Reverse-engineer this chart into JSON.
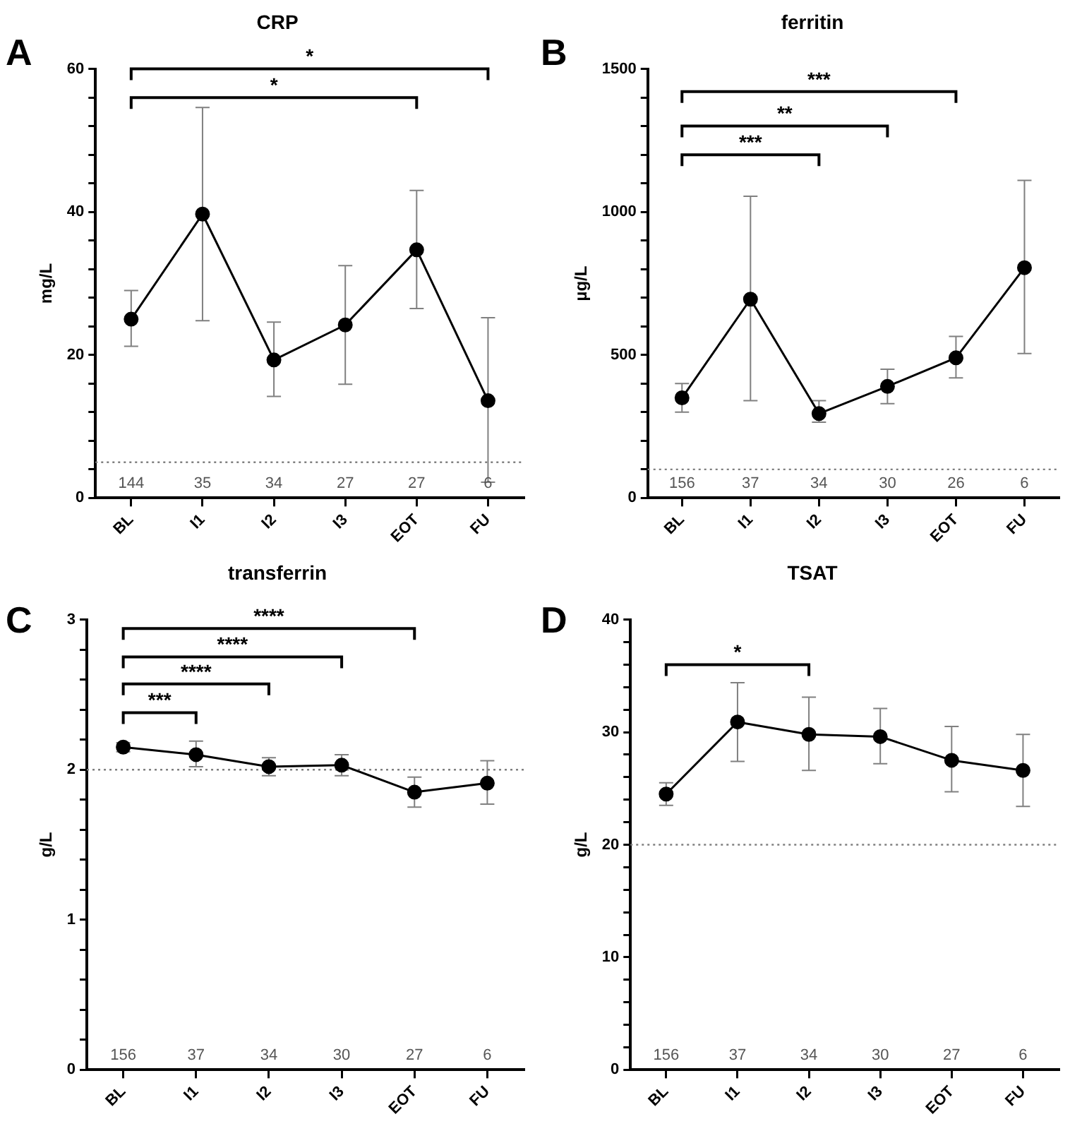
{
  "chart_data": [
    {
      "type": "line",
      "title": "CRP",
      "ylabel": "mg/L",
      "categories": [
        "BL",
        "I1",
        "I2",
        "I3",
        "EOT",
        "FU"
      ],
      "marker": "circle",
      "grid": false,
      "legend": false,
      "series": [
        {
          "color": "#000000",
          "values": [
            25,
            39.7,
            19.3,
            24.2,
            34.7,
            13.6
          ],
          "errors": [
            [
              21.2,
              29
            ],
            [
              24.8,
              54.6
            ],
            [
              14.2,
              24.6
            ],
            [
              15.9,
              32.5
            ],
            [
              26.5,
              43
            ],
            [
              2.2,
              25.2
            ]
          ]
        }
      ],
      "ylim": [
        0,
        60
      ],
      "yticks": [
        0,
        {
          "value": 4,
          "label": null
        },
        {
          "value": 8,
          "label": null
        },
        {
          "value": 12,
          "label": null
        },
        {
          "value": 16,
          "label": null
        },
        20,
        {
          "value": 24,
          "label": null
        },
        {
          "value": 28,
          "label": null
        },
        {
          "value": 32,
          "label": null
        },
        {
          "value": 36,
          "label": null
        },
        40,
        {
          "value": 44,
          "label": null
        },
        {
          "value": 48,
          "label": null
        },
        {
          "value": 52,
          "label": null
        },
        {
          "value": 56,
          "label": null
        },
        60
      ],
      "ref_lines": [
        {
          "axis": "y",
          "value": 5,
          "color": "#7f7f7f",
          "line_style": "dotted"
        }
      ],
      "annotations": [
        "A",
        "*",
        "*",
        "144",
        "35",
        "34",
        "27",
        "27",
        "6"
      ]
    },
    {
      "type": "line",
      "title": "ferritin",
      "ylabel": "µg/L",
      "categories": [
        "BL",
        "I1",
        "I2",
        "I3",
        "EOT",
        "FU"
      ],
      "marker": "circle",
      "grid": false,
      "legend": false,
      "series": [
        {
          "color": "#000000",
          "values": [
            350,
            695,
            295,
            390,
            490,
            805
          ],
          "errors": [
            [
              300,
              400
            ],
            [
              340,
              1055
            ],
            [
              265,
              340
            ],
            [
              330,
              450
            ],
            [
              420,
              565
            ],
            [
              505,
              1110
            ]
          ]
        }
      ],
      "ylim": [
        0,
        1500
      ],
      "yticks": [
        0,
        {
          "value": 100,
          "label": null
        },
        {
          "value": 200,
          "label": null
        },
        {
          "value": 300,
          "label": null
        },
        {
          "value": 400,
          "label": null
        },
        500,
        {
          "value": 600,
          "label": null
        },
        {
          "value": 700,
          "label": null
        },
        {
          "value": 800,
          "label": null
        },
        {
          "value": 900,
          "label": null
        },
        1000,
        {
          "value": 1100,
          "label": null
        },
        {
          "value": 1200,
          "label": null
        },
        {
          "value": 1300,
          "label": null
        },
        {
          "value": 1400,
          "label": null
        },
        1500
      ],
      "ref_lines": [
        {
          "axis": "y",
          "value": 100,
          "color": "#7f7f7f",
          "line_style": "dotted"
        }
      ],
      "annotations": [
        "B",
        "***",
        "**",
        "***",
        "156",
        "37",
        "34",
        "30",
        "26",
        "6"
      ]
    },
    {
      "type": "line",
      "title": "transferrin",
      "ylabel": "g/L",
      "categories": [
        "BL",
        "I1",
        "I2",
        "I3",
        "EOT",
        "FU"
      ],
      "marker": "circle",
      "grid": false,
      "legend": false,
      "series": [
        {
          "color": "#000000",
          "values": [
            2.15,
            2.1,
            2.02,
            2.03,
            1.85,
            1.91
          ],
          "errors": [
            [
              2.12,
              2.18
            ],
            [
              2.02,
              2.19
            ],
            [
              1.96,
              2.08
            ],
            [
              1.96,
              2.1
            ],
            [
              1.75,
              1.95
            ],
            [
              1.77,
              2.06
            ]
          ]
        }
      ],
      "ylim": [
        0,
        3
      ],
      "yticks": [
        0,
        {
          "value": 0.2,
          "label": null
        },
        {
          "value": 0.4,
          "label": null
        },
        {
          "value": 0.6,
          "label": null
        },
        {
          "value": 0.8,
          "label": null
        },
        1,
        {
          "value": 1.2,
          "label": null
        },
        {
          "value": 1.4,
          "label": null
        },
        {
          "value": 1.6,
          "label": null
        },
        {
          "value": 1.8,
          "label": null
        },
        2,
        {
          "value": 2.2,
          "label": null
        },
        {
          "value": 2.4,
          "label": null
        },
        {
          "value": 2.6,
          "label": null
        },
        {
          "value": 2.8,
          "label": null
        },
        3
      ],
      "ref_lines": [
        {
          "axis": "y",
          "value": 2,
          "color": "#7f7f7f",
          "line_style": "dotted"
        }
      ],
      "annotations": [
        "C",
        "***",
        "****",
        "****",
        "****",
        "156",
        "37",
        "34",
        "30",
        "27",
        "6"
      ]
    },
    {
      "type": "line",
      "title": "TSAT",
      "ylabel": "g/L",
      "categories": [
        "BL",
        "I1",
        "I2",
        "I3",
        "EOT",
        "FU"
      ],
      "marker": "circle",
      "grid": false,
      "legend": false,
      "series": [
        {
          "color": "#000000",
          "values": [
            24.5,
            30.9,
            29.8,
            29.6,
            27.5,
            26.6
          ],
          "errors": [
            [
              23.5,
              25.5
            ],
            [
              27.4,
              34.4
            ],
            [
              26.6,
              33.1
            ],
            [
              27.2,
              32.1
            ],
            [
              24.7,
              30.5
            ],
            [
              23.4,
              29.8
            ]
          ]
        }
      ],
      "ylim": [
        0,
        40
      ],
      "yticks": [
        0,
        {
          "value": 2,
          "label": null
        },
        {
          "value": 4,
          "label": null
        },
        {
          "value": 6,
          "label": null
        },
        {
          "value": 8,
          "label": null
        },
        10,
        {
          "value": 12,
          "label": null
        },
        {
          "value": 14,
          "label": null
        },
        {
          "value": 16,
          "label": null
        },
        {
          "value": 18,
          "label": null
        },
        20,
        {
          "value": 22,
          "label": null
        },
        {
          "value": 24,
          "label": null
        },
        {
          "value": 26,
          "label": null
        },
        {
          "value": 28,
          "label": null
        },
        30,
        {
          "value": 32,
          "label": null
        },
        {
          "value": 34,
          "label": null
        },
        {
          "value": 36,
          "label": null
        },
        {
          "value": 38,
          "label": null
        },
        40
      ],
      "ref_lines": [
        {
          "axis": "y",
          "value": 20,
          "color": "#7f7f7f",
          "line_style": "dotted"
        }
      ],
      "annotations": [
        "D",
        "*",
        "156",
        "37",
        "34",
        "30",
        "27",
        "6"
      ]
    }
  ]
}
